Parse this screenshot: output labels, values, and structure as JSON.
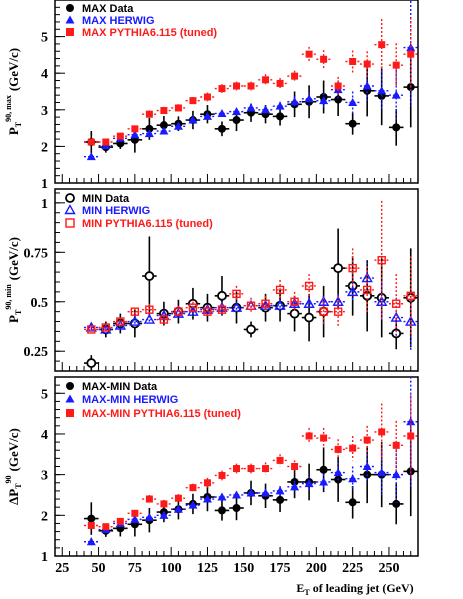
{
  "colors": {
    "data": "#000000",
    "herwig": "#1a1aff",
    "pythia": "#ff1a1a"
  },
  "xaxis": {
    "label": "of leading jet (GeV)",
    "label_prefix": "E",
    "label_sub": "T",
    "ticks": [
      "25",
      "50",
      "75",
      "100",
      "125",
      "150",
      "175",
      "200",
      "225",
      "250"
    ],
    "range": [
      20,
      270
    ]
  },
  "chart_data": [
    {
      "type": "scatter",
      "ylabel_main": "P",
      "ylabel_sub": "T",
      "ylabel_sup": "90, max",
      "ylabel_unit": "(GeV/c)",
      "ylim": [
        1,
        6
      ],
      "yticks": [
        "1",
        "2",
        "3",
        "4",
        "5"
      ],
      "legend": [
        "MAX Data",
        "MAX HERWIG",
        "MAX PYTHIA6.115 (tuned)"
      ],
      "series": [
        {
          "name": "MAX Data",
          "x": [
            45,
            55,
            65,
            75,
            85,
            95,
            105,
            115,
            125,
            135,
            145,
            155,
            165,
            175,
            185,
            195,
            205,
            215,
            225,
            235,
            245,
            255,
            265
          ],
          "y": [
            2.12,
            1.98,
            2.08,
            2.18,
            2.48,
            2.58,
            2.62,
            2.72,
            2.88,
            2.48,
            2.72,
            2.92,
            2.88,
            2.82,
            3.15,
            3.22,
            3.35,
            3.28,
            2.62,
            3.52,
            3.38,
            2.52,
            3.62
          ],
          "err": [
            0.3,
            0.15,
            0.15,
            0.35,
            0.3,
            0.25,
            0.2,
            0.25,
            0.25,
            0.2,
            0.3,
            0.25,
            0.25,
            0.25,
            0.35,
            0.45,
            0.45,
            0.45,
            0.3,
            0.7,
            0.8,
            0.5,
            1.1
          ]
        },
        {
          "name": "MAX HERWIG",
          "x": [
            45,
            55,
            65,
            75,
            85,
            95,
            105,
            115,
            125,
            135,
            145,
            155,
            165,
            175,
            185,
            195,
            205,
            215,
            225,
            235,
            245,
            255,
            265
          ],
          "y": [
            1.72,
            2.02,
            2.22,
            2.32,
            2.35,
            2.42,
            2.55,
            2.72,
            2.82,
            2.9,
            2.95,
            3.05,
            3.0,
            3.1,
            3.22,
            3.3,
            3.25,
            3.55,
            3.2,
            3.65,
            3.52,
            3.4,
            4.7
          ],
          "err": [
            0.1,
            0.08,
            0.08,
            0.08,
            0.08,
            0.08,
            0.08,
            0.08,
            0.08,
            0.08,
            0.08,
            0.1,
            0.1,
            0.12,
            0.15,
            0.18,
            0.2,
            0.25,
            0.3,
            0.4,
            0.55,
            0.7,
            1.6
          ]
        },
        {
          "name": "MAX PYTHIA6.115 (tuned)",
          "x": [
            45,
            55,
            65,
            75,
            85,
            95,
            105,
            115,
            125,
            135,
            145,
            155,
            165,
            175,
            185,
            195,
            205,
            215,
            225,
            235,
            245,
            255,
            265
          ],
          "y": [
            2.12,
            2.12,
            2.28,
            2.48,
            2.88,
            2.98,
            3.05,
            3.25,
            3.35,
            3.58,
            3.65,
            3.65,
            3.82,
            3.72,
            3.92,
            4.52,
            4.38,
            3.65,
            4.32,
            4.25,
            4.78,
            4.22,
            4.52
          ],
          "err": [
            0.08,
            0.08,
            0.08,
            0.08,
            0.1,
            0.1,
            0.1,
            0.1,
            0.12,
            0.12,
            0.12,
            0.12,
            0.15,
            0.15,
            0.15,
            0.2,
            0.25,
            0.25,
            0.3,
            0.35,
            0.7,
            0.6,
            1.0
          ]
        }
      ]
    },
    {
      "type": "scatter",
      "ylabel_main": "P",
      "ylabel_sub": "T",
      "ylabel_sup": "90, min",
      "ylabel_unit": "(GeV/c)",
      "ylim": [
        0.15,
        1.07
      ],
      "yticks": [
        "0.25",
        "0.5",
        "0.75",
        "1"
      ],
      "legend": [
        "MIN Data",
        "MIN HERWIG",
        "MIN PYTHIA6.115 (tuned)"
      ],
      "series": [
        {
          "name": "MIN Data",
          "x": [
            45,
            55,
            65,
            75,
            85,
            95,
            105,
            115,
            125,
            135,
            145,
            155,
            165,
            175,
            185,
            195,
            205,
            215,
            225,
            235,
            245,
            255,
            265
          ],
          "y": [
            0.19,
            0.36,
            0.39,
            0.39,
            0.63,
            0.44,
            0.45,
            0.49,
            0.47,
            0.53,
            0.47,
            0.36,
            0.47,
            0.48,
            0.44,
            0.42,
            0.45,
            0.67,
            0.58,
            0.53,
            0.52,
            0.34,
            0.52
          ],
          "err": [
            0.04,
            0.04,
            0.05,
            0.07,
            0.2,
            0.06,
            0.06,
            0.08,
            0.07,
            0.1,
            0.08,
            0.04,
            0.07,
            0.08,
            0.09,
            0.12,
            0.13,
            0.2,
            0.15,
            0.18,
            0.2,
            0.08,
            0.25
          ]
        },
        {
          "name": "MIN HERWIG",
          "x": [
            45,
            55,
            65,
            75,
            85,
            95,
            105,
            115,
            125,
            135,
            145,
            155,
            165,
            175,
            185,
            195,
            205,
            215,
            225,
            235,
            245,
            255,
            265
          ],
          "y": [
            0.37,
            0.36,
            0.38,
            0.4,
            0.41,
            0.43,
            0.44,
            0.45,
            0.46,
            0.47,
            0.47,
            0.48,
            0.48,
            0.48,
            0.49,
            0.49,
            0.5,
            0.5,
            0.55,
            0.62,
            0.5,
            0.42,
            0.4
          ],
          "err": [
            0.02,
            0.02,
            0.02,
            0.02,
            0.02,
            0.02,
            0.02,
            0.02,
            0.02,
            0.02,
            0.02,
            0.02,
            0.02,
            0.02,
            0.03,
            0.03,
            0.03,
            0.04,
            0.05,
            0.08,
            0.1,
            0.1,
            0.15
          ]
        },
        {
          "name": "MIN PYTHIA6.115 (tuned)",
          "x": [
            45,
            55,
            65,
            75,
            85,
            95,
            105,
            115,
            125,
            135,
            145,
            155,
            165,
            175,
            185,
            195,
            205,
            215,
            225,
            235,
            245,
            255,
            265
          ],
          "y": [
            0.36,
            0.37,
            0.4,
            0.45,
            0.46,
            0.41,
            0.45,
            0.47,
            0.45,
            0.46,
            0.54,
            0.48,
            0.49,
            0.56,
            0.5,
            0.58,
            0.45,
            0.45,
            0.67,
            0.56,
            0.71,
            0.49,
            0.53
          ],
          "err": [
            0.02,
            0.02,
            0.02,
            0.02,
            0.03,
            0.03,
            0.03,
            0.03,
            0.03,
            0.03,
            0.04,
            0.04,
            0.04,
            0.05,
            0.05,
            0.06,
            0.07,
            0.08,
            0.1,
            0.12,
            0.3,
            0.15,
            0.2
          ]
        }
      ]
    },
    {
      "type": "scatter",
      "ylabel_main": "ΔP",
      "ylabel_sub": "T",
      "ylabel_sup": "90",
      "ylabel_unit": "(GeV/c)",
      "ylim": [
        1,
        5.4
      ],
      "yticks": [
        "1",
        "2",
        "3",
        "4",
        "5"
      ],
      "legend": [
        "MAX-MIN Data",
        "MAX-MIN HERWIG",
        "MAX-MIN PYTHIA6.115 (tuned)"
      ],
      "series": [
        {
          "name": "MAX-MIN Data",
          "x": [
            45,
            55,
            65,
            75,
            85,
            95,
            105,
            115,
            125,
            135,
            145,
            155,
            165,
            175,
            185,
            195,
            205,
            215,
            225,
            235,
            245,
            255,
            265
          ],
          "y": [
            1.92,
            1.62,
            1.68,
            1.78,
            1.88,
            2.08,
            2.15,
            2.28,
            2.45,
            2.12,
            2.18,
            2.55,
            2.48,
            2.38,
            2.82,
            2.82,
            3.12,
            2.88,
            2.32,
            3.0,
            3.0,
            2.28,
            3.08
          ],
          "err": [
            0.4,
            0.15,
            0.2,
            0.3,
            0.3,
            0.25,
            0.25,
            0.25,
            0.35,
            0.25,
            0.3,
            0.3,
            0.3,
            0.3,
            0.4,
            0.45,
            0.55,
            0.55,
            0.4,
            0.7,
            0.8,
            0.5,
            1.1
          ]
        },
        {
          "name": "MAX-MIN HERWIG",
          "x": [
            45,
            55,
            65,
            75,
            85,
            95,
            105,
            115,
            125,
            135,
            145,
            155,
            165,
            175,
            185,
            195,
            205,
            215,
            225,
            235,
            245,
            255,
            265
          ],
          "y": [
            1.35,
            1.65,
            1.8,
            1.9,
            1.95,
            2.0,
            2.15,
            2.25,
            2.4,
            2.45,
            2.5,
            2.55,
            2.55,
            2.6,
            2.7,
            2.78,
            2.82,
            3.05,
            2.9,
            3.2,
            3.05,
            3.0,
            4.3
          ],
          "err": [
            0.1,
            0.08,
            0.08,
            0.08,
            0.08,
            0.08,
            0.08,
            0.08,
            0.08,
            0.08,
            0.08,
            0.1,
            0.1,
            0.12,
            0.15,
            0.18,
            0.2,
            0.25,
            0.3,
            0.4,
            0.55,
            0.7,
            1.6
          ]
        },
        {
          "name": "MAX-MIN PYTHIA6.115 (tuned)",
          "x": [
            45,
            55,
            65,
            75,
            85,
            95,
            105,
            115,
            125,
            135,
            145,
            155,
            165,
            175,
            185,
            195,
            205,
            215,
            225,
            235,
            245,
            255,
            265
          ],
          "y": [
            1.75,
            1.72,
            1.85,
            2.05,
            2.4,
            2.28,
            2.42,
            2.68,
            2.8,
            2.98,
            3.15,
            3.15,
            3.15,
            3.35,
            3.2,
            3.95,
            3.9,
            3.62,
            3.65,
            3.85,
            4.05,
            3.72,
            3.95
          ],
          "err": [
            0.08,
            0.08,
            0.08,
            0.08,
            0.1,
            0.1,
            0.1,
            0.1,
            0.12,
            0.12,
            0.12,
            0.12,
            0.15,
            0.15,
            0.15,
            0.2,
            0.25,
            0.25,
            0.3,
            0.35,
            0.7,
            0.6,
            1.0
          ]
        }
      ]
    }
  ]
}
